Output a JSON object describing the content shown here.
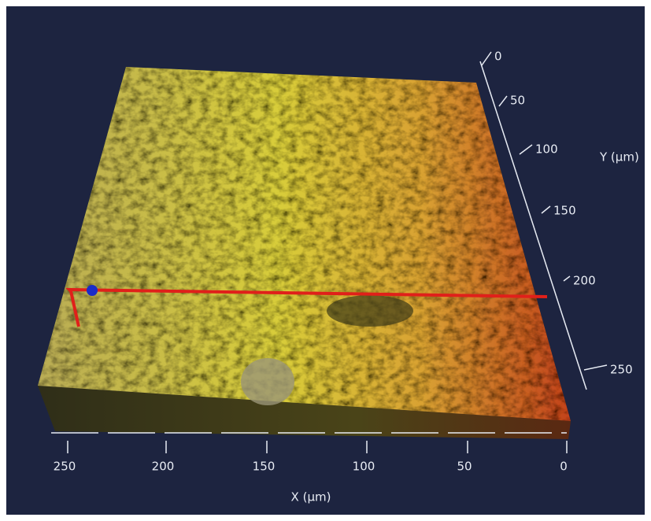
{
  "x_axis": {
    "title": "X (µm)",
    "ticks": [
      "250",
      "200",
      "150",
      "100",
      "50",
      "0"
    ]
  },
  "y_axis": {
    "title": "Y (µm)",
    "ticks": [
      "0",
      "50",
      "100",
      "150",
      "200",
      "250"
    ]
  }
}
